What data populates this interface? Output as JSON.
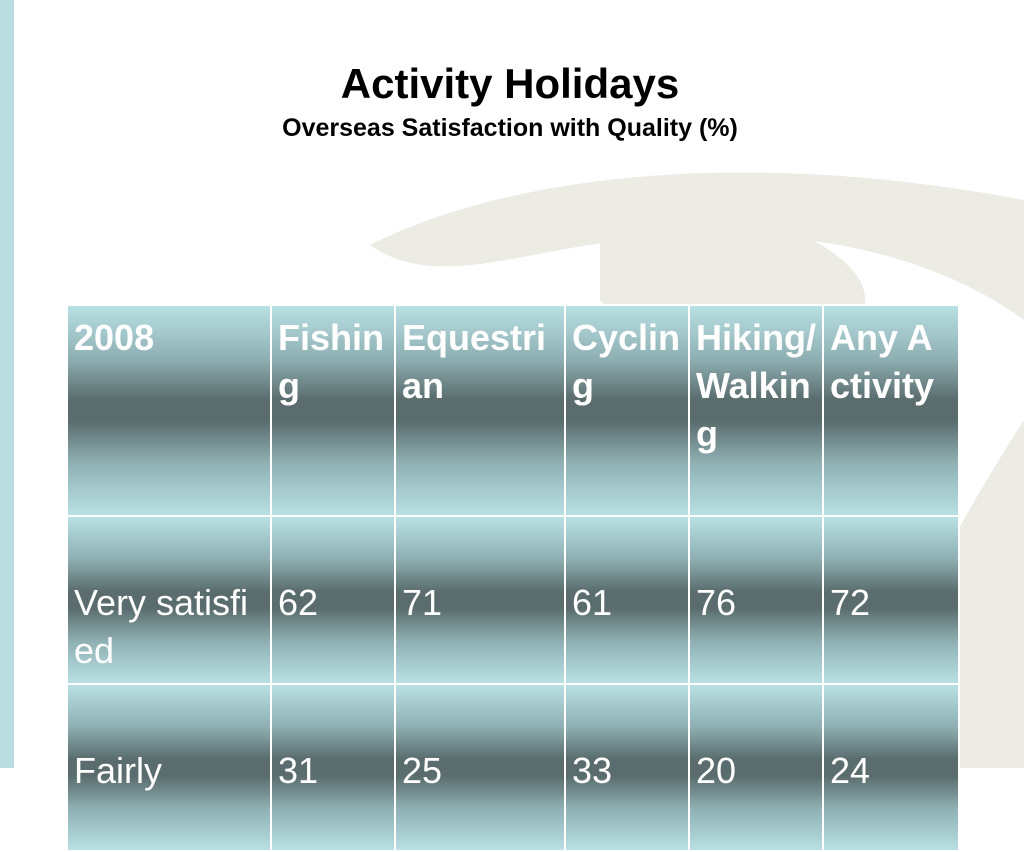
{
  "header": {
    "title": "Activity Holidays",
    "subtitle": "Overseas Satisfaction with Quality (%)"
  },
  "table": {
    "columns": [
      "2008",
      "Fishing",
      "Equestrian",
      "Cycling",
      "Hiking/ Walking",
      "Any Activity"
    ],
    "rows": [
      [
        "Very satisfied",
        "62",
        "71",
        "61",
        "76",
        "72"
      ],
      [
        "Fairly",
        "31",
        "25",
        "33",
        "20",
        "24"
      ]
    ]
  }
}
